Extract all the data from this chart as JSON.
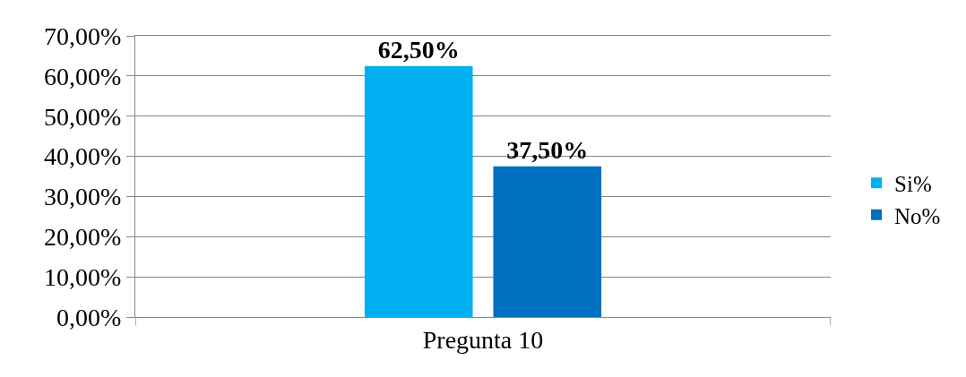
{
  "chart_data": {
    "type": "bar",
    "categories": [
      "Pregunta 10"
    ],
    "series": [
      {
        "name": "Si%",
        "color": "#00b0f0",
        "values": [
          62.5
        ],
        "value_labels": [
          "62,50%"
        ]
      },
      {
        "name": "No%",
        "color": "#0070c0",
        "values": [
          37.5
        ],
        "value_labels": [
          "37,50%"
        ]
      }
    ],
    "ylim": [
      0,
      70
    ],
    "yticks": [
      {
        "value": 0,
        "label": "0,00%"
      },
      {
        "value": 10,
        "label": "10,00%"
      },
      {
        "value": 20,
        "label": "20,00%"
      },
      {
        "value": 30,
        "label": "30,00%"
      },
      {
        "value": 40,
        "label": "40,00%"
      },
      {
        "value": 50,
        "label": "50,00%"
      },
      {
        "value": 60,
        "label": "60,00%"
      },
      {
        "value": 70,
        "label": "70,00%"
      }
    ],
    "grid": "y",
    "legend": "right"
  }
}
